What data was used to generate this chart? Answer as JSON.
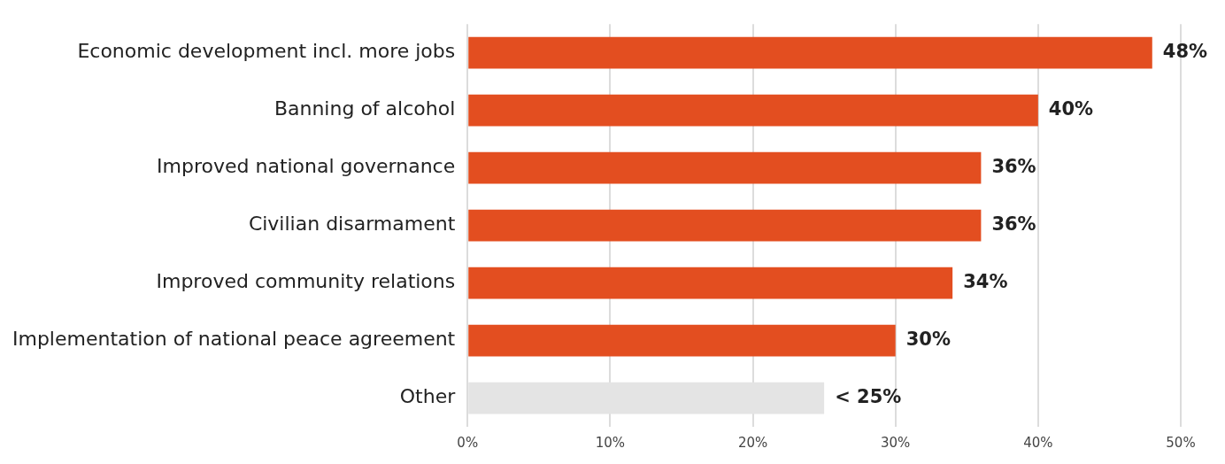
{
  "chart_data": {
    "type": "bar",
    "orientation": "horizontal",
    "categories": [
      "Economic development incl. more jobs",
      "Banning of alcohol",
      "Improved national governance",
      "Civilian disarmament",
      "Improved community relations",
      "Implementation of national peace agreement",
      "Other"
    ],
    "values": [
      48,
      40,
      36,
      36,
      34,
      30,
      25
    ],
    "colors": [
      "#e34e20",
      "#e34e20",
      "#e34e20",
      "#e34e20",
      "#e34e20",
      "#e34e20",
      "#e4e4e4"
    ],
    "value_labels": [
      "48%",
      "40%",
      "36%",
      "36%",
      "34%",
      "30%",
      "< 25%"
    ],
    "xlim": [
      0,
      50
    ],
    "xticks": [
      {
        "value": 0,
        "label": "0%"
      },
      {
        "value": 10,
        "label": "10%"
      },
      {
        "value": 20,
        "label": "20%"
      },
      {
        "value": 30,
        "label": "30%"
      },
      {
        "value": 40,
        "label": "40%"
      },
      {
        "value": 50,
        "label": "50%"
      }
    ],
    "grid": "x",
    "legend": false
  }
}
